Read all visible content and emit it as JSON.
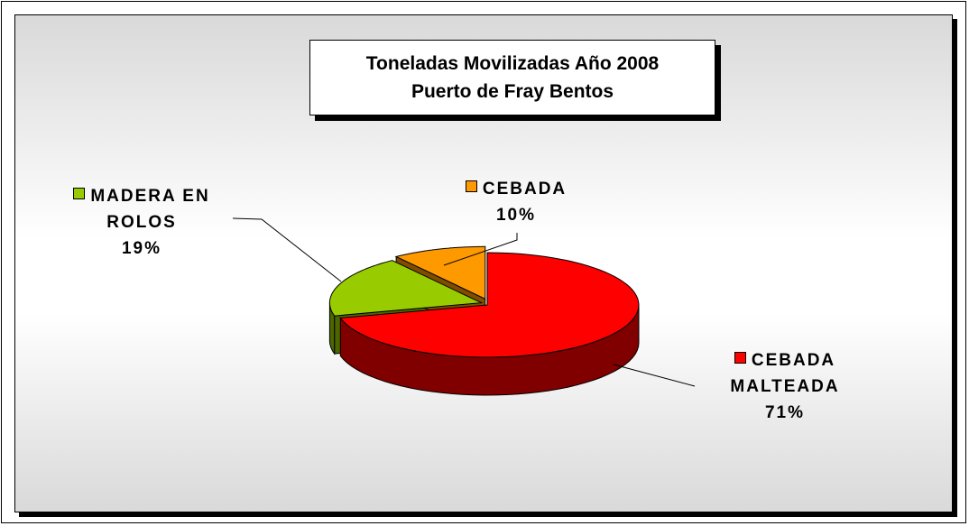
{
  "chart_data": {
    "type": "pie",
    "title": [
      "Toneladas Movilizadas Año 2008",
      "Puerto de Fray Bentos"
    ],
    "categories": [
      "CEBADA MALTEADA",
      "MADERA EN ROLOS",
      "CEBADA"
    ],
    "values": [
      71,
      19,
      10
    ],
    "value_labels": [
      "71%",
      "19%",
      "10%"
    ],
    "colors": [
      "#ff0000",
      "#99cc00",
      "#ff9900"
    ]
  }
}
